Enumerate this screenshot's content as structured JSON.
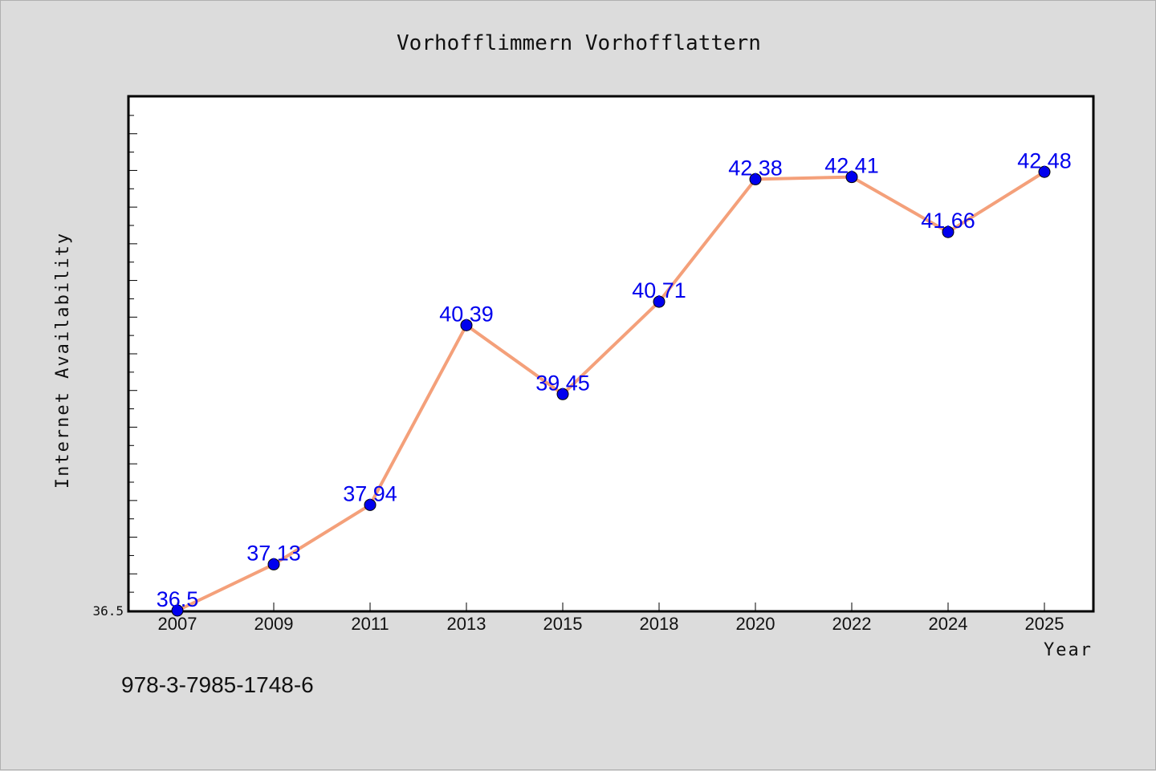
{
  "chart_data": {
    "type": "line",
    "title": "Vorhofflimmern Vorhofflattern",
    "xlabel": "Year",
    "ylabel": "Internet Availability",
    "categories": [
      "2007",
      "2009",
      "2011",
      "2013",
      "2015",
      "2018",
      "2020",
      "2022",
      "2024",
      "2025"
    ],
    "series": [
      {
        "values": [
          36.5,
          37.13,
          37.94,
          40.39,
          39.45,
          40.71,
          42.38,
          42.41,
          41.66,
          42.48
        ],
        "labels": [
          "36.5",
          "37.13",
          "37.94",
          "40.39",
          "39.45",
          "40.71",
          "42.38",
          "42.41",
          "41.66",
          "42.48"
        ]
      }
    ],
    "y_min_label": "36.5",
    "ylim": [
      36.5,
      43.5
    ],
    "grid": false,
    "line_color": "#f4a07a",
    "marker_color": "#0000ee"
  },
  "footer": {
    "code": "978-3-7985-1748-6"
  }
}
